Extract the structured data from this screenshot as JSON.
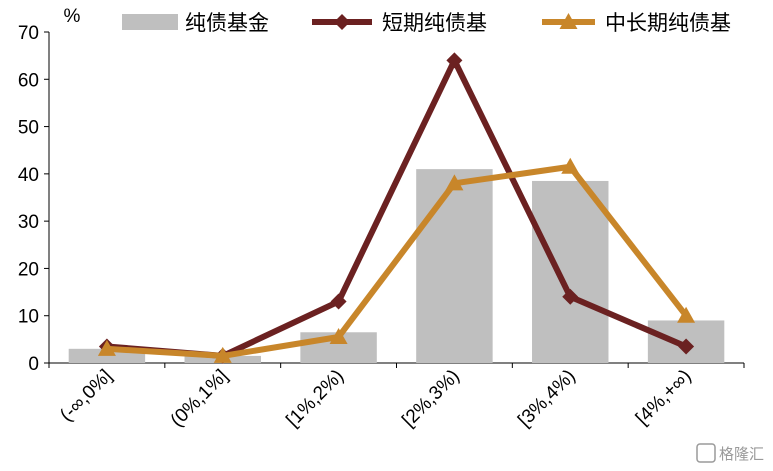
{
  "chart_data": {
    "type": "bar",
    "y_unit": "%",
    "categories": [
      "(-∞,0%]",
      "(0%,1%]",
      "[1%,2%)",
      "[2%,3%)",
      "[3%,4%)",
      "[4%,+∞)"
    ],
    "ylim": [
      0,
      70
    ],
    "yticks": [
      0,
      10,
      20,
      30,
      40,
      50,
      60,
      70
    ],
    "legend_position": "top",
    "series": [
      {
        "name": "纯债基金",
        "kind": "bar",
        "color": "#bfbfbf",
        "values": [
          3,
          1.5,
          6.5,
          41,
          38.5,
          9
        ]
      },
      {
        "name": "短期纯债基",
        "kind": "line",
        "marker": "diamond",
        "color": "#6b2121",
        "values": [
          3.5,
          1.5,
          13,
          64,
          14,
          3.5
        ]
      },
      {
        "name": "中长期纯债基",
        "kind": "line",
        "marker": "triangle",
        "color": "#c8862a",
        "values": [
          3,
          1.5,
          5.5,
          38,
          41.5,
          10
        ]
      }
    ]
  },
  "watermark": "格隆汇"
}
